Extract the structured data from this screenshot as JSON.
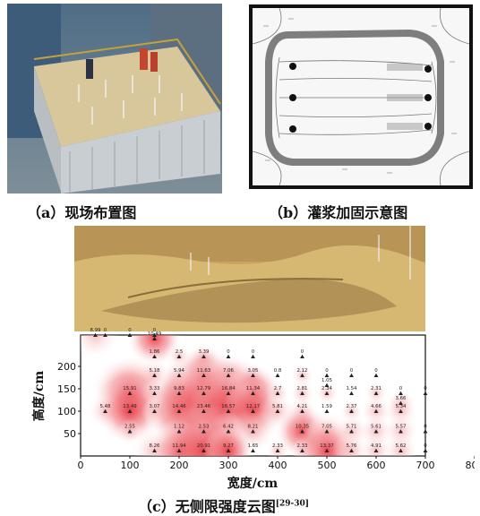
{
  "captions": {
    "a": "（a）现场布置图",
    "b": "（b）灌浆加固示意图",
    "c_main": "（c）无侧限强度云图",
    "c_ref": "[29-30]"
  },
  "chart_data": {
    "type": "heatmap",
    "xlabel": "宽度/cm",
    "ylabel": "高度/cm",
    "xlim": [
      0,
      800
    ],
    "ylim": [
      0,
      270
    ],
    "xticks": [
      0,
      100,
      200,
      300,
      400,
      500,
      600,
      700,
      800
    ],
    "yticks": [
      50,
      100,
      150,
      200
    ],
    "points": [
      {
        "x": 30,
        "y": 270,
        "v": "8.99"
      },
      {
        "x": 50,
        "y": 270,
        "v": "0"
      },
      {
        "x": 100,
        "y": 270,
        "v": "0"
      },
      {
        "x": 150,
        "y": 270,
        "v": "0"
      },
      {
        "x": 150,
        "y": 262,
        "v": "10.49"
      },
      {
        "x": 150,
        "y": 222,
        "v": "1.86"
      },
      {
        "x": 200,
        "y": 222,
        "v": "2.5"
      },
      {
        "x": 250,
        "y": 222,
        "v": "3.39"
      },
      {
        "x": 300,
        "y": 222,
        "v": "0"
      },
      {
        "x": 350,
        "y": 222,
        "v": "0"
      },
      {
        "x": 450,
        "y": 222,
        "v": "0"
      },
      {
        "x": 150,
        "y": 180,
        "v": "5.18"
      },
      {
        "x": 200,
        "y": 180,
        "v": "5.94"
      },
      {
        "x": 250,
        "y": 180,
        "v": "11.63"
      },
      {
        "x": 300,
        "y": 180,
        "v": "7.06"
      },
      {
        "x": 350,
        "y": 180,
        "v": "3.05"
      },
      {
        "x": 400,
        "y": 180,
        "v": "0.8"
      },
      {
        "x": 450,
        "y": 180,
        "v": "2.12"
      },
      {
        "x": 500,
        "y": 180,
        "v": "0"
      },
      {
        "x": 550,
        "y": 180,
        "v": "0"
      },
      {
        "x": 600,
        "y": 180,
        "v": "0"
      },
      {
        "x": 500,
        "y": 158,
        "v": "1.05"
      },
      {
        "x": 100,
        "y": 140,
        "v": "15.91"
      },
      {
        "x": 150,
        "y": 140,
        "v": "3.33"
      },
      {
        "x": 200,
        "y": 140,
        "v": "9.83"
      },
      {
        "x": 250,
        "y": 140,
        "v": "12.79"
      },
      {
        "x": 300,
        "y": 140,
        "v": "16.84"
      },
      {
        "x": 350,
        "y": 140,
        "v": "11.34"
      },
      {
        "x": 400,
        "y": 140,
        "v": "2.7"
      },
      {
        "x": 450,
        "y": 140,
        "v": "2.81"
      },
      {
        "x": 500,
        "y": 140,
        "v": "2.34"
      },
      {
        "x": 550,
        "y": 140,
        "v": "1.54"
      },
      {
        "x": 600,
        "y": 140,
        "v": "2.31"
      },
      {
        "x": 650,
        "y": 140,
        "v": "0"
      },
      {
        "x": 700,
        "y": 140,
        "v": "0"
      },
      {
        "x": 650,
        "y": 118,
        "v": "3.66"
      },
      {
        "x": 50,
        "y": 100,
        "v": "5.48"
      },
      {
        "x": 100,
        "y": 100,
        "v": "13.49"
      },
      {
        "x": 150,
        "y": 100,
        "v": "3.07"
      },
      {
        "x": 200,
        "y": 100,
        "v": "14.46"
      },
      {
        "x": 250,
        "y": 100,
        "v": "23.46"
      },
      {
        "x": 300,
        "y": 100,
        "v": "16.57"
      },
      {
        "x": 350,
        "y": 100,
        "v": "12.17"
      },
      {
        "x": 400,
        "y": 100,
        "v": "5.81"
      },
      {
        "x": 450,
        "y": 100,
        "v": "4.21"
      },
      {
        "x": 500,
        "y": 100,
        "v": "1.59"
      },
      {
        "x": 550,
        "y": 100,
        "v": "2.37"
      },
      {
        "x": 600,
        "y": 100,
        "v": "4.66"
      },
      {
        "x": 650,
        "y": 100,
        "v": "5.34"
      },
      {
        "x": 100,
        "y": 55,
        "v": "2.55"
      },
      {
        "x": 200,
        "y": 55,
        "v": "1.12"
      },
      {
        "x": 250,
        "y": 55,
        "v": "2.53"
      },
      {
        "x": 300,
        "y": 55,
        "v": "6.42"
      },
      {
        "x": 350,
        "y": 55,
        "v": "8.21"
      },
      {
        "x": 450,
        "y": 55,
        "v": "10.35"
      },
      {
        "x": 500,
        "y": 55,
        "v": "7.05"
      },
      {
        "x": 550,
        "y": 55,
        "v": "5.71"
      },
      {
        "x": 600,
        "y": 55,
        "v": "5.61"
      },
      {
        "x": 650,
        "y": 55,
        "v": "5.57"
      },
      {
        "x": 700,
        "y": 55,
        "v": "0"
      },
      {
        "x": 150,
        "y": 12,
        "v": "8.26"
      },
      {
        "x": 200,
        "y": 12,
        "v": "11.94"
      },
      {
        "x": 250,
        "y": 12,
        "v": "20.91"
      },
      {
        "x": 300,
        "y": 12,
        "v": "9.27"
      },
      {
        "x": 350,
        "y": 12,
        "v": "1.65"
      },
      {
        "x": 400,
        "y": 12,
        "v": "2.33"
      },
      {
        "x": 450,
        "y": 12,
        "v": "2.33"
      },
      {
        "x": 500,
        "y": 12,
        "v": "13.37"
      },
      {
        "x": 550,
        "y": 12,
        "v": "5.76"
      },
      {
        "x": 600,
        "y": 12,
        "v": "4.91"
      },
      {
        "x": 650,
        "y": 12,
        "v": "5.62"
      },
      {
        "x": 700,
        "y": 12,
        "v": "0"
      }
    ]
  }
}
